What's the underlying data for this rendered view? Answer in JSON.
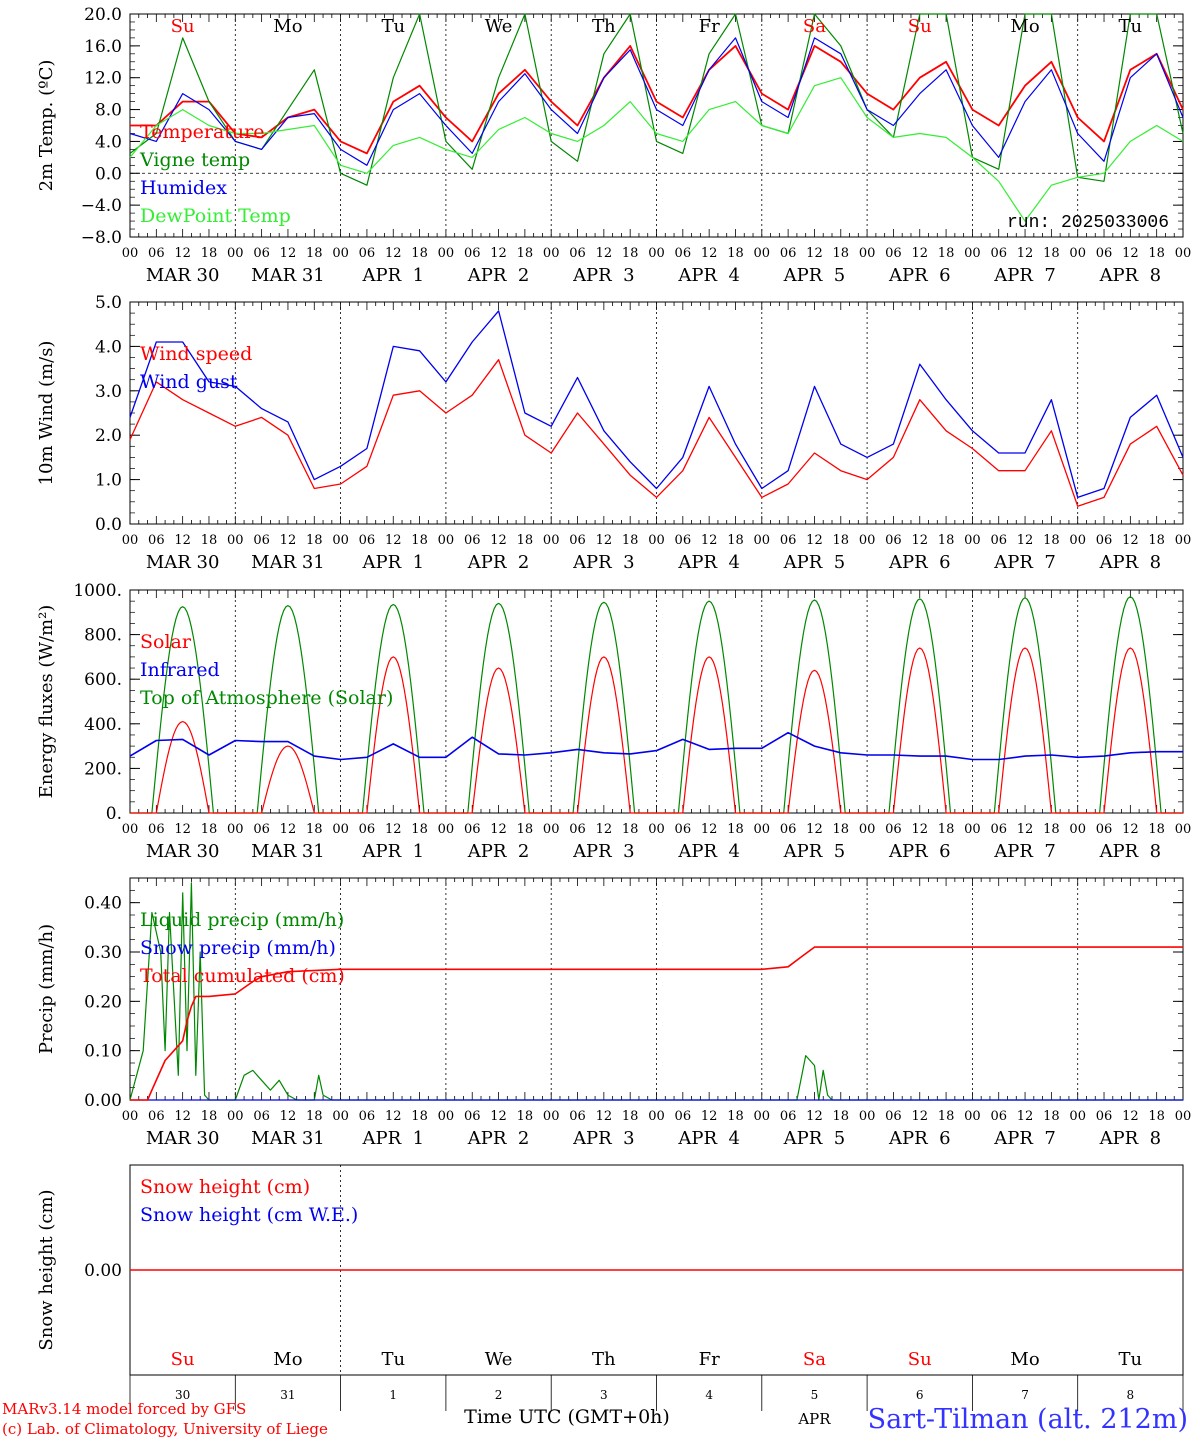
{
  "colors": {
    "red": "#ff0000",
    "blue": "#0000ee",
    "green": "#008800",
    "lightgreen": "#33ee33",
    "black": "#000000",
    "title": "#3333ff"
  },
  "time_axis": {
    "hour_labels": [
      "00",
      "06",
      "12",
      "18"
    ],
    "days": [
      {
        "weekday": "Su",
        "date": "MAR 30",
        "dnum": "30",
        "weekend": true
      },
      {
        "weekday": "Mo",
        "date": "MAR 31",
        "dnum": "31",
        "weekend": false
      },
      {
        "weekday": "Tu",
        "date": "APR  1",
        "dnum": "1",
        "weekend": false
      },
      {
        "weekday": "We",
        "date": "APR  2",
        "dnum": "2",
        "weekend": false
      },
      {
        "weekday": "Th",
        "date": "APR  3",
        "dnum": "3",
        "weekend": false
      },
      {
        "weekday": "Fr",
        "date": "APR  4",
        "dnum": "4",
        "weekend": false
      },
      {
        "weekday": "Sa",
        "date": "APR  5",
        "dnum": "5",
        "weekend": true
      },
      {
        "weekday": "Su",
        "date": "APR  6",
        "dnum": "6",
        "weekend": true
      },
      {
        "weekday": "Mo",
        "date": "APR  7",
        "dnum": "7",
        "weekend": false
      },
      {
        "weekday": "Tu",
        "date": "APR  8",
        "dnum": "8",
        "weekend": false
      }
    ],
    "final_hour_label": "00",
    "xlabel": "Time UTC (GMT+0h)",
    "month_label": "APR"
  },
  "footer": {
    "credit_line1": "MARv3.14 model forced by GFS",
    "credit_line2": "(c) Lab. of Climatology, University of Liege",
    "station": "Sart-Tilman (alt. 212m)"
  },
  "chart_data": [
    {
      "type": "line",
      "ylabel": "2m Temp. (ºC)",
      "ylim": [
        -8,
        20
      ],
      "yticks": [
        "−8.0",
        "−4.0",
        "0.0",
        "4.0",
        "8.0",
        "12.0",
        "16.0",
        "20.0"
      ],
      "annotation": "run: 2025033006",
      "series": [
        {
          "name": "Temperature",
          "color": "red",
          "x": [
            0,
            6,
            12,
            18,
            24,
            30,
            36,
            42,
            48,
            54,
            60,
            66,
            72,
            78,
            84,
            90,
            96,
            102,
            108,
            114,
            120,
            126,
            132,
            138,
            144,
            150,
            156,
            162,
            168,
            174,
            180,
            186,
            192,
            198,
            204,
            210,
            216,
            222,
            228,
            234,
            240
          ],
          "values": [
            6,
            6,
            9,
            9,
            5,
            4.5,
            7,
            8,
            4,
            2.5,
            9,
            11,
            7,
            4,
            10,
            13,
            9,
            6,
            12,
            16,
            9,
            7,
            13,
            16,
            10,
            8,
            16,
            14,
            10,
            8,
            12,
            14,
            8,
            6,
            11,
            14,
            7,
            4,
            13,
            15,
            8
          ]
        },
        {
          "name": "Vigne temp",
          "color": "green",
          "x": [
            0,
            6,
            12,
            18,
            24,
            30,
            36,
            42,
            48,
            54,
            60,
            66,
            72,
            78,
            84,
            90,
            96,
            102,
            108,
            114,
            120,
            126,
            132,
            138,
            144,
            150,
            156,
            162,
            168,
            174,
            180,
            186,
            192,
            198,
            204,
            210,
            216,
            222,
            228,
            234,
            240
          ],
          "values": [
            2.5,
            5,
            17,
            9,
            4,
            3,
            8,
            13,
            0,
            -1.5,
            12,
            23,
            4,
            0.5,
            12,
            22,
            4,
            1.5,
            15,
            24,
            4,
            2.5,
            15,
            24,
            6,
            5,
            22,
            16,
            8,
            4.5,
            20,
            24,
            2,
            0.5,
            21,
            24,
            -0.5,
            -1,
            23,
            22,
            5
          ]
        },
        {
          "name": "Humidex",
          "color": "blue",
          "x": [
            0,
            6,
            12,
            18,
            24,
            30,
            36,
            42,
            48,
            54,
            60,
            66,
            72,
            78,
            84,
            90,
            96,
            102,
            108,
            114,
            120,
            126,
            132,
            138,
            144,
            150,
            156,
            162,
            168,
            174,
            180,
            186,
            192,
            198,
            204,
            210,
            216,
            222,
            228,
            234,
            240
          ],
          "values": [
            5,
            4,
            10,
            8,
            4,
            3,
            7,
            7.5,
            3,
            1,
            8,
            10,
            6,
            2.5,
            9,
            12.5,
            8,
            5,
            12,
            15.5,
            8,
            6,
            13,
            17,
            9,
            7,
            17,
            15,
            8,
            6,
            10,
            13,
            6,
            2,
            9,
            13,
            5,
            1.5,
            12,
            15,
            7
          ]
        },
        {
          "name": "DewPoint Temp",
          "color": "lightgreen",
          "x": [
            0,
            6,
            12,
            18,
            24,
            30,
            36,
            42,
            48,
            54,
            60,
            66,
            72,
            78,
            84,
            90,
            96,
            102,
            108,
            114,
            120,
            126,
            132,
            138,
            144,
            150,
            156,
            162,
            168,
            174,
            180,
            186,
            192,
            198,
            204,
            210,
            216,
            222,
            228,
            234,
            240
          ],
          "values": [
            2,
            6,
            8,
            6,
            5,
            5,
            5.5,
            6,
            1,
            0,
            3.5,
            4.5,
            3,
            2,
            5.5,
            7,
            5,
            4,
            6,
            9,
            5,
            4,
            8,
            9,
            6,
            5,
            11,
            12,
            7,
            4.5,
            5,
            4.5,
            2,
            -1,
            -6,
            -1.5,
            -0.5,
            0,
            4,
            6,
            4
          ]
        }
      ]
    },
    {
      "type": "line",
      "ylabel": "10m Wind (m/s)",
      "ylim": [
        0,
        5
      ],
      "yticks": [
        "0.0",
        "1.0",
        "2.0",
        "3.0",
        "4.0",
        "5.0"
      ],
      "series": [
        {
          "name": "Wind speed",
          "color": "red",
          "x": [
            0,
            6,
            12,
            18,
            24,
            30,
            36,
            42,
            48,
            54,
            60,
            66,
            72,
            78,
            84,
            90,
            96,
            102,
            108,
            114,
            120,
            126,
            132,
            138,
            144,
            150,
            156,
            162,
            168,
            174,
            180,
            186,
            192,
            198,
            204,
            210,
            216,
            222,
            228,
            234,
            240
          ],
          "values": [
            1.9,
            3.2,
            2.8,
            2.5,
            2.2,
            2.4,
            2.0,
            0.8,
            0.9,
            1.3,
            2.9,
            3.0,
            2.5,
            2.9,
            3.7,
            2.0,
            1.6,
            2.5,
            1.8,
            1.1,
            0.6,
            1.2,
            2.4,
            1.5,
            0.6,
            0.9,
            1.6,
            1.2,
            1.0,
            1.5,
            2.8,
            2.1,
            1.7,
            1.2,
            1.2,
            2.1,
            0.4,
            0.6,
            1.8,
            2.2,
            1.1
          ]
        },
        {
          "name": "Wind gust",
          "color": "blue",
          "x": [
            0,
            6,
            12,
            18,
            24,
            30,
            36,
            42,
            48,
            54,
            60,
            66,
            72,
            78,
            84,
            90,
            96,
            102,
            108,
            114,
            120,
            126,
            132,
            138,
            144,
            150,
            156,
            162,
            168,
            174,
            180,
            186,
            192,
            198,
            204,
            210,
            216,
            222,
            228,
            234,
            240
          ],
          "values": [
            2.4,
            4.1,
            4.1,
            3.2,
            3.1,
            2.6,
            2.3,
            1.0,
            1.3,
            1.7,
            4.0,
            3.9,
            3.2,
            4.1,
            4.8,
            2.5,
            2.2,
            3.3,
            2.1,
            1.4,
            0.8,
            1.5,
            3.1,
            1.8,
            0.8,
            1.2,
            3.1,
            1.8,
            1.5,
            1.8,
            3.6,
            2.8,
            2.1,
            1.6,
            1.6,
            2.8,
            0.6,
            0.8,
            2.4,
            2.9,
            1.5
          ]
        }
      ]
    },
    {
      "type": "line",
      "ylabel": "Energy fluxes (W/m²)",
      "ylim": [
        0,
        1000
      ],
      "yticks": [
        "0.",
        "200.",
        "400.",
        "600.",
        "800.",
        "1000."
      ],
      "series": [
        {
          "name": "Solar",
          "color": "red",
          "peaks": [
            410,
            300,
            700,
            650,
            700,
            700,
            640,
            740,
            740,
            740
          ]
        },
        {
          "name": "Infrared",
          "color": "blue",
          "x": [
            0,
            6,
            12,
            18,
            24,
            30,
            36,
            42,
            48,
            54,
            60,
            66,
            72,
            78,
            84,
            90,
            96,
            102,
            108,
            114,
            120,
            126,
            132,
            138,
            144,
            150,
            156,
            162,
            168,
            174,
            180,
            186,
            192,
            198,
            204,
            210,
            216,
            222,
            228,
            234,
            240
          ],
          "values": [
            255,
            325,
            330,
            260,
            325,
            320,
            320,
            255,
            240,
            250,
            310,
            250,
            250,
            340,
            265,
            260,
            270,
            285,
            270,
            265,
            280,
            330,
            285,
            290,
            290,
            360,
            300,
            270,
            260,
            260,
            255,
            255,
            240,
            240,
            255,
            260,
            250,
            255,
            270,
            275,
            275
          ]
        },
        {
          "name": "Top of Atmosphere (Solar)",
          "color": "green",
          "peaks": [
            925,
            930,
            935,
            940,
            945,
            950,
            955,
            960,
            965,
            970
          ]
        }
      ]
    },
    {
      "type": "line",
      "ylabel": "Precip (mm/h)",
      "ylim": [
        0,
        0.45
      ],
      "yticks": [
        "0.00",
        "0.10",
        "0.20",
        "0.30",
        "0.40"
      ],
      "series": [
        {
          "name": "Liquid precip (mm/h)",
          "color": "green",
          "x": [
            0,
            3,
            5,
            7,
            8,
            9,
            11,
            12,
            13,
            14,
            15,
            16,
            17,
            18,
            20,
            22,
            24,
            26,
            28,
            30,
            32,
            34,
            36,
            38,
            40,
            42,
            43,
            44,
            46,
            48,
            150,
            152,
            154,
            156,
            157,
            158,
            159,
            160,
            162,
            240
          ],
          "values": [
            0,
            0.1,
            0.38,
            0.3,
            0.1,
            0.38,
            0.05,
            0.42,
            0.1,
            0.44,
            0.05,
            0.3,
            0.01,
            0,
            0,
            0,
            0,
            0.05,
            0.06,
            0.04,
            0.02,
            0.04,
            0.01,
            0,
            0,
            0,
            0.05,
            0.01,
            0,
            0,
            0,
            0,
            0.09,
            0.07,
            0,
            0.06,
            0.01,
            0,
            0,
            0
          ]
        },
        {
          "name": "Snow precip (mm/h)",
          "color": "blue",
          "x": [
            0,
            240
          ],
          "values": [
            0,
            0
          ]
        },
        {
          "name": "Total cumulated (cm)",
          "color": "red",
          "x": [
            0,
            4,
            5,
            8,
            10,
            12,
            13,
            14,
            15,
            18,
            24,
            28,
            30,
            36,
            48,
            96,
            144,
            150,
            153,
            156,
            240
          ],
          "values": [
            0,
            0,
            0.02,
            0.08,
            0.1,
            0.12,
            0.16,
            0.19,
            0.21,
            0.21,
            0.215,
            0.24,
            0.25,
            0.26,
            0.265,
            0.265,
            0.265,
            0.27,
            0.29,
            0.31,
            0.31
          ]
        }
      ]
    },
    {
      "type": "line",
      "ylabel": "Snow height (cm)",
      "yticks": [
        "0.00"
      ],
      "series": [
        {
          "name": "Snow height (cm)",
          "color": "red",
          "x": [
            0,
            240
          ],
          "values": [
            0,
            0
          ]
        },
        {
          "name": "Snow height (cm W.E.)",
          "color": "blue",
          "x": [
            0,
            240
          ],
          "values": [
            0,
            0
          ]
        }
      ]
    }
  ]
}
